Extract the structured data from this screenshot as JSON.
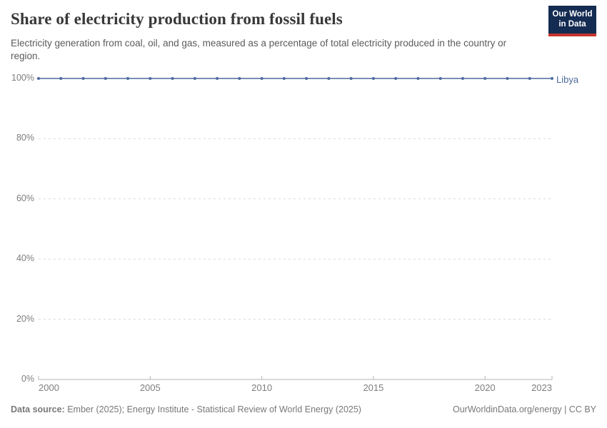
{
  "header": {
    "title": "Share of electricity production from fossil fuels",
    "subtitle": "Electricity generation from coal, oil, and gas, measured as a percentage of total electricity produced in the country or region.",
    "logo_line1": "Our World",
    "logo_line2": "in Data"
  },
  "chart_data": {
    "type": "line",
    "title": "Share of electricity production from fossil fuels",
    "xlabel": "",
    "ylabel": "",
    "xlim": [
      2000,
      2023
    ],
    "ylim": [
      0,
      100
    ],
    "grid": "horizontal-dashed",
    "legend_position": "end-of-line",
    "x_ticks": [
      {
        "value": 2000,
        "label": "2000"
      },
      {
        "value": 2005,
        "label": "2005"
      },
      {
        "value": 2010,
        "label": "2010"
      },
      {
        "value": 2015,
        "label": "2015"
      },
      {
        "value": 2020,
        "label": "2020"
      },
      {
        "value": 2023,
        "label": "2023"
      }
    ],
    "y_ticks": [
      {
        "value": 0,
        "label": "0%"
      },
      {
        "value": 20,
        "label": "20%"
      },
      {
        "value": 40,
        "label": "40%"
      },
      {
        "value": 60,
        "label": "60%"
      },
      {
        "value": 80,
        "label": "80%"
      },
      {
        "value": 100,
        "label": "100%"
      }
    ],
    "series": [
      {
        "name": "Libya",
        "color": "#4C6A9C",
        "x": [
          2000,
          2001,
          2002,
          2003,
          2004,
          2005,
          2006,
          2007,
          2008,
          2009,
          2010,
          2011,
          2012,
          2013,
          2014,
          2015,
          2016,
          2017,
          2018,
          2019,
          2020,
          2021,
          2022,
          2023
        ],
        "values": [
          100,
          100,
          100,
          100,
          100,
          100,
          100,
          100,
          100,
          100,
          100,
          100,
          100,
          100,
          100,
          100,
          100,
          100,
          100,
          100,
          100,
          100,
          100,
          100
        ]
      }
    ]
  },
  "footer": {
    "source_label": "Data source:",
    "source_text": " Ember (2025); Energy Institute - Statistical Review of World Energy (2025)",
    "credit": "OurWorldinData.org/energy | CC BY"
  },
  "colors": {
    "accent_blue": "#4C6A9C",
    "title_color": "#383838",
    "subtitle_color": "#5b5b5b",
    "tick_color": "#7d7d7d",
    "footer_color": "#787878",
    "grid_color": "#dcdcdc",
    "axis_color": "#b5b5b5",
    "logo_navy": "#142B52",
    "logo_red": "#C5342C"
  }
}
